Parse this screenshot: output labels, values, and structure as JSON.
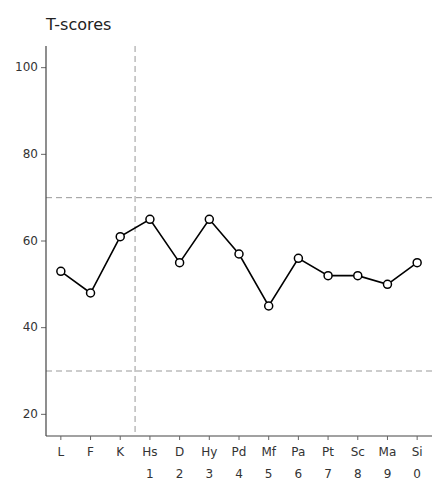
{
  "chart_data": {
    "type": "line",
    "title": "T-scores",
    "categories": [
      "L",
      "F",
      "K",
      "Hs",
      "D",
      "Hy",
      "Pd",
      "Mf",
      "Pa",
      "Pt",
      "Sc",
      "Ma",
      "Si"
    ],
    "secondary_labels": [
      null,
      null,
      null,
      "1",
      "2",
      "3",
      "4",
      "5",
      "6",
      "7",
      "8",
      "9",
      "0"
    ],
    "values": [
      53,
      48,
      61,
      65,
      55,
      65,
      57,
      45,
      56,
      52,
      52,
      50,
      55
    ],
    "reference_lines": [
      70,
      30
    ],
    "category_divider": 3,
    "ylim": [
      15,
      105
    ],
    "yticks": [
      20,
      40,
      60,
      80,
      100
    ],
    "color": "#000000",
    "marker": "circle",
    "grid": false
  }
}
